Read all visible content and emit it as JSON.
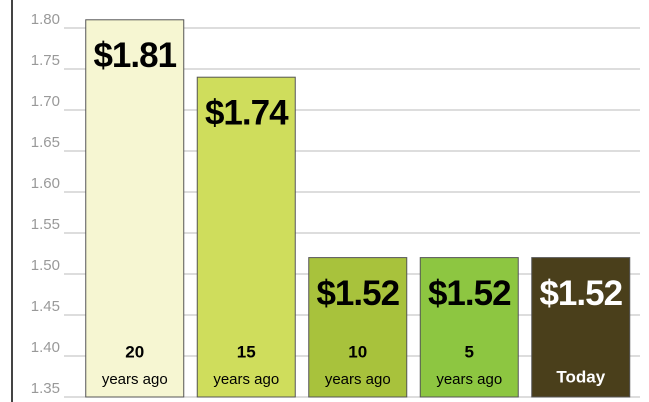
{
  "chart_data": {
    "type": "bar",
    "categories": [
      [
        "20",
        "years ago"
      ],
      [
        "15",
        "years ago"
      ],
      [
        "10",
        "years ago"
      ],
      [
        "5",
        "years ago"
      ],
      [
        "Today"
      ]
    ],
    "values": [
      1.81,
      1.74,
      1.52,
      1.52,
      1.52
    ],
    "value_labels": [
      "$1.81",
      "$1.74",
      "$1.52",
      "$1.52",
      "$1.52"
    ],
    "colors": [
      "#f6f6d2",
      "#cfdd5c",
      "#a8c23c",
      "#8dc641",
      "#4a3f1b"
    ],
    "ylim": [
      1.35,
      1.8
    ],
    "yticks": [
      {
        "value": 1.35,
        "label": "1.35"
      },
      {
        "value": 1.4,
        "label": "1.40"
      },
      {
        "value": 1.45,
        "label": "1.45"
      },
      {
        "value": 1.5,
        "label": "1.50"
      },
      {
        "value": 1.55,
        "label": "1.55"
      },
      {
        "value": 1.6,
        "label": "1.60"
      },
      {
        "value": 1.65,
        "label": "1.65"
      },
      {
        "value": 1.7,
        "label": "1.70"
      },
      {
        "value": 1.75,
        "label": "1.75"
      },
      {
        "value": 1.8,
        "label": "1.80"
      }
    ],
    "grid": true
  }
}
